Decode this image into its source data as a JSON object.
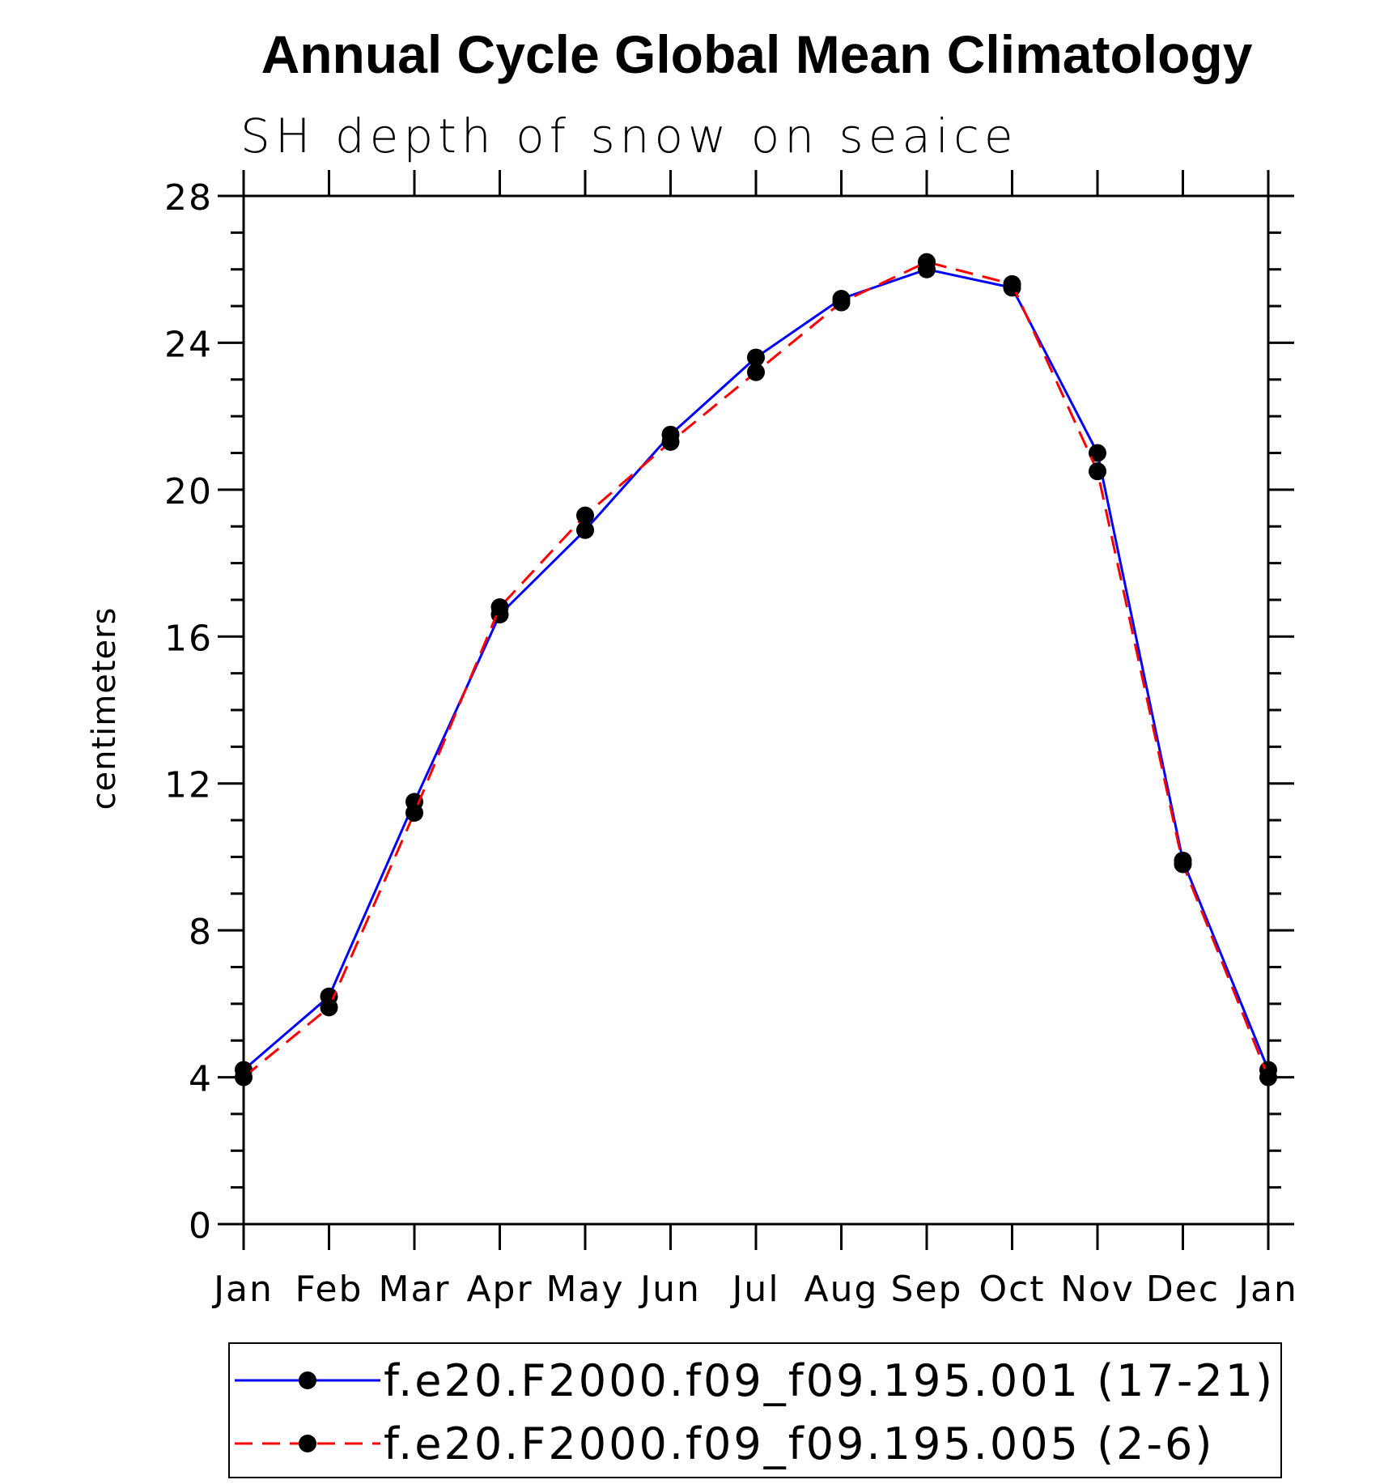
{
  "chart_data": {
    "type": "line",
    "title": "Annual Cycle Global Mean Climatology",
    "subtitle": "SH depth of snow on seaice",
    "xlabel": "",
    "ylabel": "centimeters",
    "categories": [
      "Jan",
      "Feb",
      "Mar",
      "Apr",
      "May",
      "Jun",
      "Jul",
      "Aug",
      "Sep",
      "Oct",
      "Nov",
      "Dec",
      "Jan"
    ],
    "ylim": [
      0,
      28
    ],
    "yticks": [
      0,
      4,
      8,
      12,
      16,
      20,
      24,
      28
    ],
    "yticks_labels": [
      "0",
      "4",
      "8",
      "12",
      "16",
      "20",
      "24",
      "28"
    ],
    "series": [
      {
        "name": "f.e20.F2000.f09_f09.195.001 (17-21)",
        "color": "#0000ff",
        "dash": "solid",
        "marker": "filled-circle",
        "values": [
          4.2,
          6.2,
          11.5,
          16.6,
          18.9,
          21.5,
          23.6,
          25.2,
          26.0,
          25.5,
          21.0,
          9.9,
          4.2
        ]
      },
      {
        "name": "f.e20.F2000.f09_f09.195.005 (2-6)",
        "color": "#ff0000",
        "dash": "dashed",
        "marker": "filled-circle",
        "values": [
          4.0,
          5.9,
          11.2,
          16.8,
          19.3,
          21.3,
          23.2,
          25.1,
          26.2,
          25.6,
          20.5,
          9.8,
          4.0
        ]
      }
    ],
    "legend": {
      "position": "bottom",
      "entries": [
        "f.e20.F2000.f09_f09.195.001 (17-21)",
        "f.e20.F2000.f09_f09.195.005 (2-6)"
      ]
    },
    "grid": false
  }
}
